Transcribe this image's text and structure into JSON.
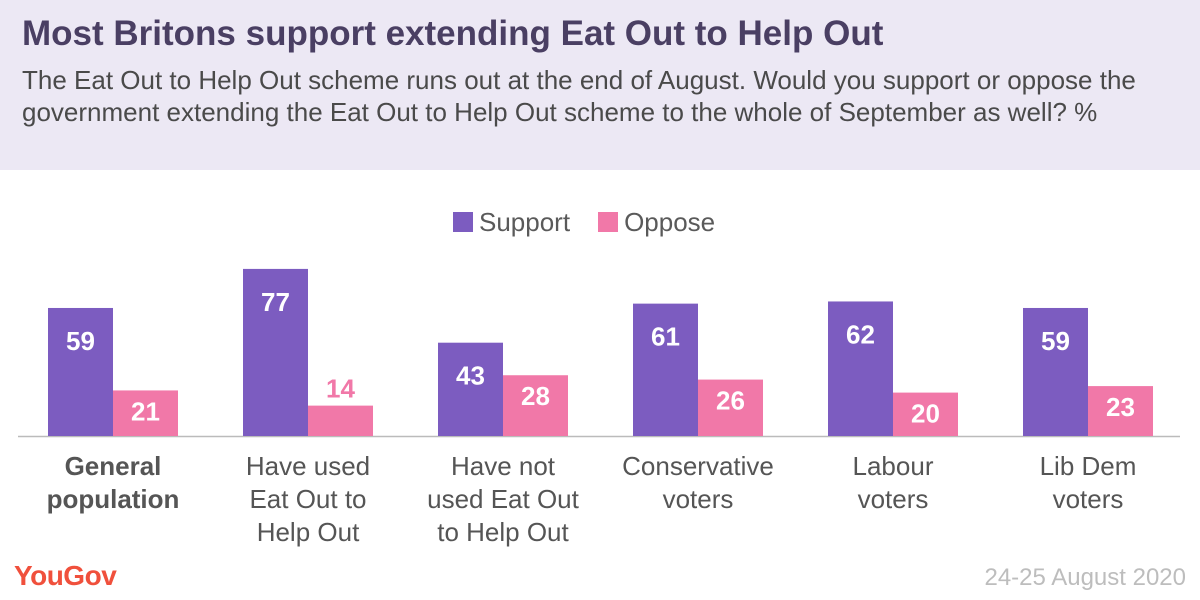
{
  "header": {
    "title": "Most Britons support extending Eat Out to Help Out",
    "subtitle": "The Eat Out to Help Out scheme runs out at the end of August. Would you support or oppose the government extending the Eat Out to Help Out scheme to the whole of September as well? %"
  },
  "colors": {
    "support": "#7c5cc0",
    "oppose": "#f178a8",
    "header_bg": "#ece8f4"
  },
  "chart_data": {
    "type": "bar",
    "categories": [
      "General population",
      "Have used Eat Out to Help Out",
      "Have not used Eat Out to Help Out",
      "Conservative voters",
      "Labour voters",
      "Lib Dem voters"
    ],
    "category_lines": [
      [
        "General",
        "population"
      ],
      [
        "Have used",
        "Eat Out to",
        "Help Out"
      ],
      [
        "Have not",
        "used Eat Out",
        "to Help Out"
      ],
      [
        "Conservative",
        "voters"
      ],
      [
        "Labour",
        "voters"
      ],
      [
        "Lib Dem",
        "voters"
      ]
    ],
    "series": [
      {
        "name": "Support",
        "values": [
          59,
          77,
          43,
          61,
          62,
          59
        ]
      },
      {
        "name": "Oppose",
        "values": [
          21,
          14,
          28,
          26,
          20,
          23
        ]
      }
    ],
    "ylim": [
      0,
      80
    ],
    "grid": false,
    "legend_position": "top-center",
    "data_labels": true
  },
  "footer": {
    "brand": "YouGov",
    "date": "24-25 August 2020"
  }
}
